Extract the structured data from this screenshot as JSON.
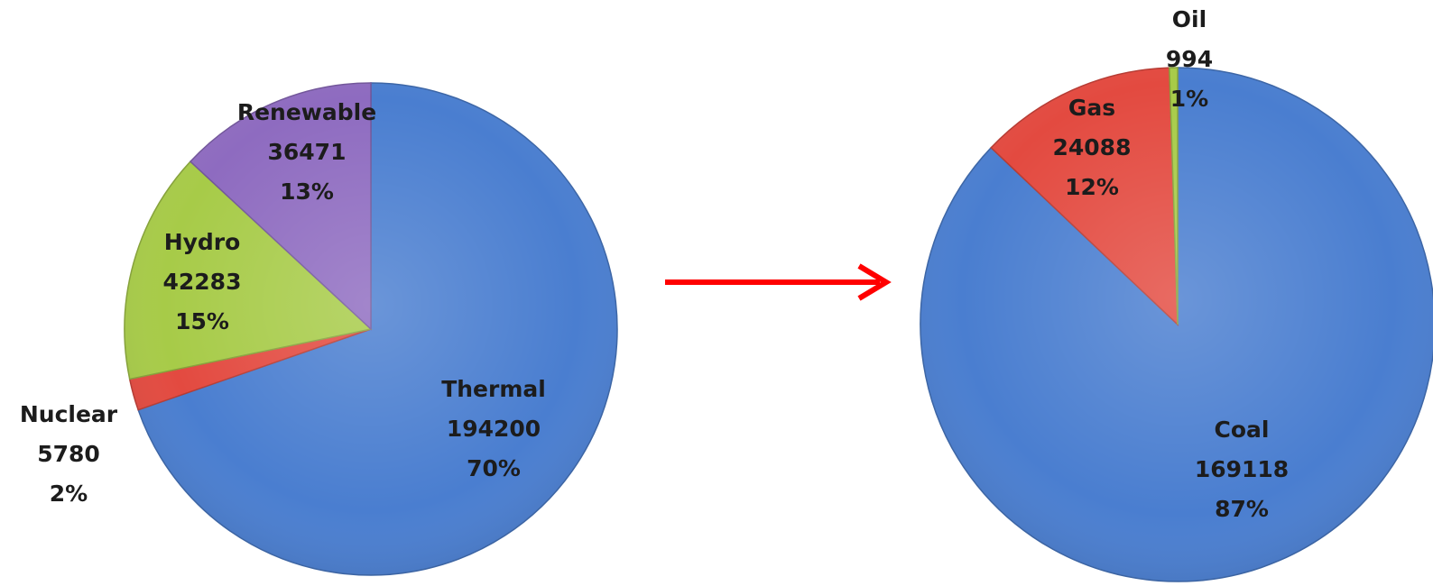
{
  "arrow_color": "#ff0000",
  "chart_data": [
    {
      "type": "pie",
      "title": "",
      "slices": [
        {
          "name": "Thermal",
          "value": 194200,
          "percent": "70%",
          "color": "#4a7ed0"
        },
        {
          "name": "Nuclear",
          "value": 5780,
          "percent": "2%",
          "color": "#e34a40"
        },
        {
          "name": "Hydro",
          "value": 42283,
          "percent": "15%",
          "color": "#a7cb48"
        },
        {
          "name": "Renewable",
          "value": 36471,
          "percent": "13%",
          "color": "#8e6bc0"
        }
      ]
    },
    {
      "type": "pie",
      "title": "",
      "slices": [
        {
          "name": "Coal",
          "value": 169118,
          "percent": "87%",
          "color": "#4a7ed0"
        },
        {
          "name": "Gas",
          "value": 24088,
          "percent": "12%",
          "color": "#e34a40"
        },
        {
          "name": "Oil",
          "value": 994,
          "percent": "1%",
          "color": "#a7cb48"
        }
      ]
    }
  ]
}
